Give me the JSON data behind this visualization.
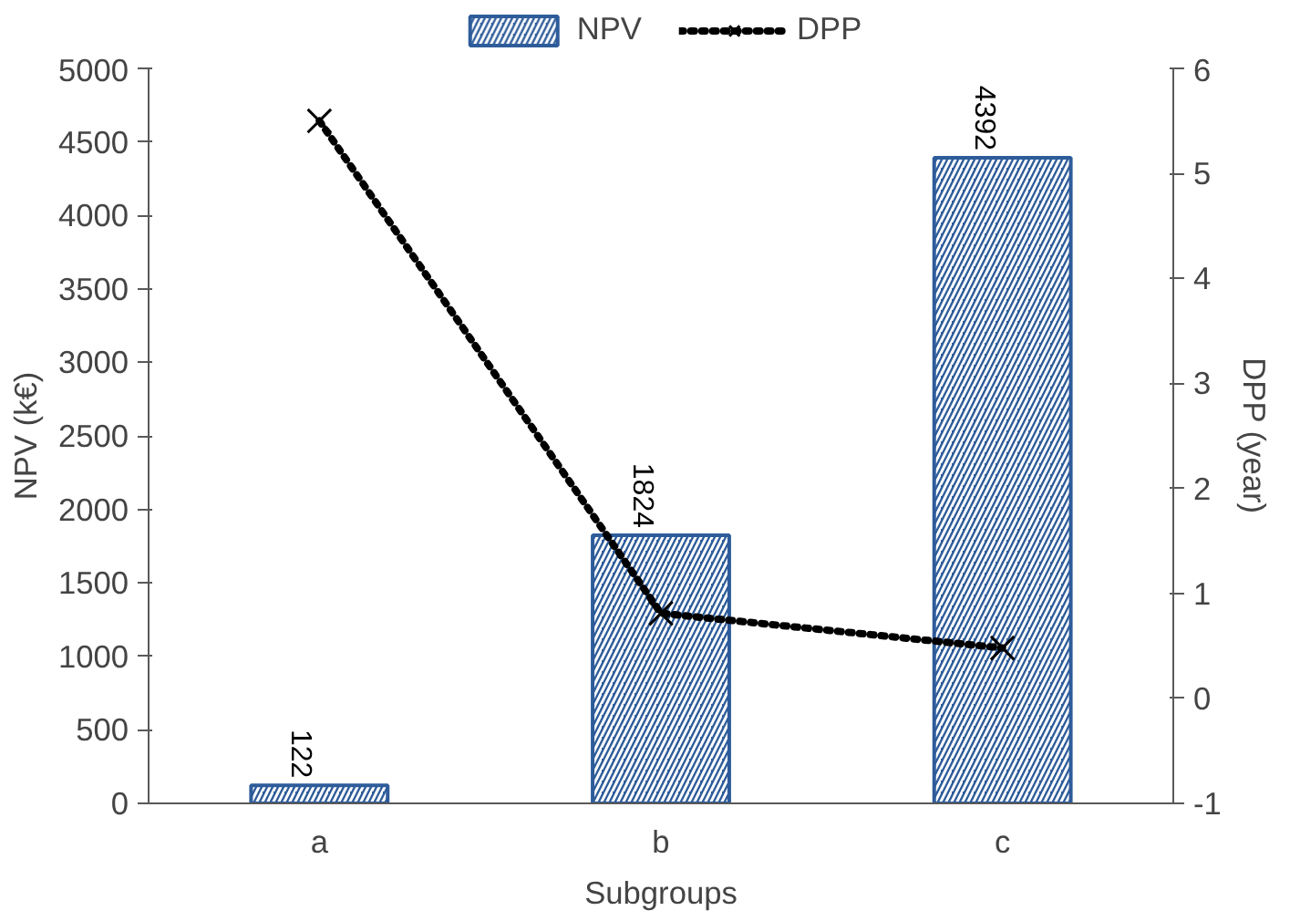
{
  "chart_data": {
    "type": "bar",
    "xlabel": "Subgroups",
    "ylabel": "NPV (k€)",
    "y2label": "DPP (year)",
    "categories": [
      "a",
      "b",
      "c"
    ],
    "series": [
      {
        "name": "NPV",
        "color": "#2e5c9a",
        "values": [
          122,
          1824,
          4392
        ],
        "value_labels": [
          "122",
          "1824",
          "4392"
        ]
      },
      {
        "name": "DPP",
        "type": "line",
        "axis": "y2",
        "color": "#000000",
        "marker": "cross",
        "line_style": "dotted",
        "values": [
          5.5,
          0.81,
          0.48
        ]
      }
    ],
    "ylim": [
      0,
      5000
    ],
    "yticks": [
      0,
      500,
      1000,
      1500,
      2000,
      2500,
      3000,
      3500,
      4000,
      4500,
      5000
    ],
    "y2lim": [
      -1,
      6
    ],
    "y2ticks": [
      -1,
      0,
      1,
      2,
      3,
      4,
      5,
      6
    ],
    "grid": false,
    "legend": "top"
  }
}
